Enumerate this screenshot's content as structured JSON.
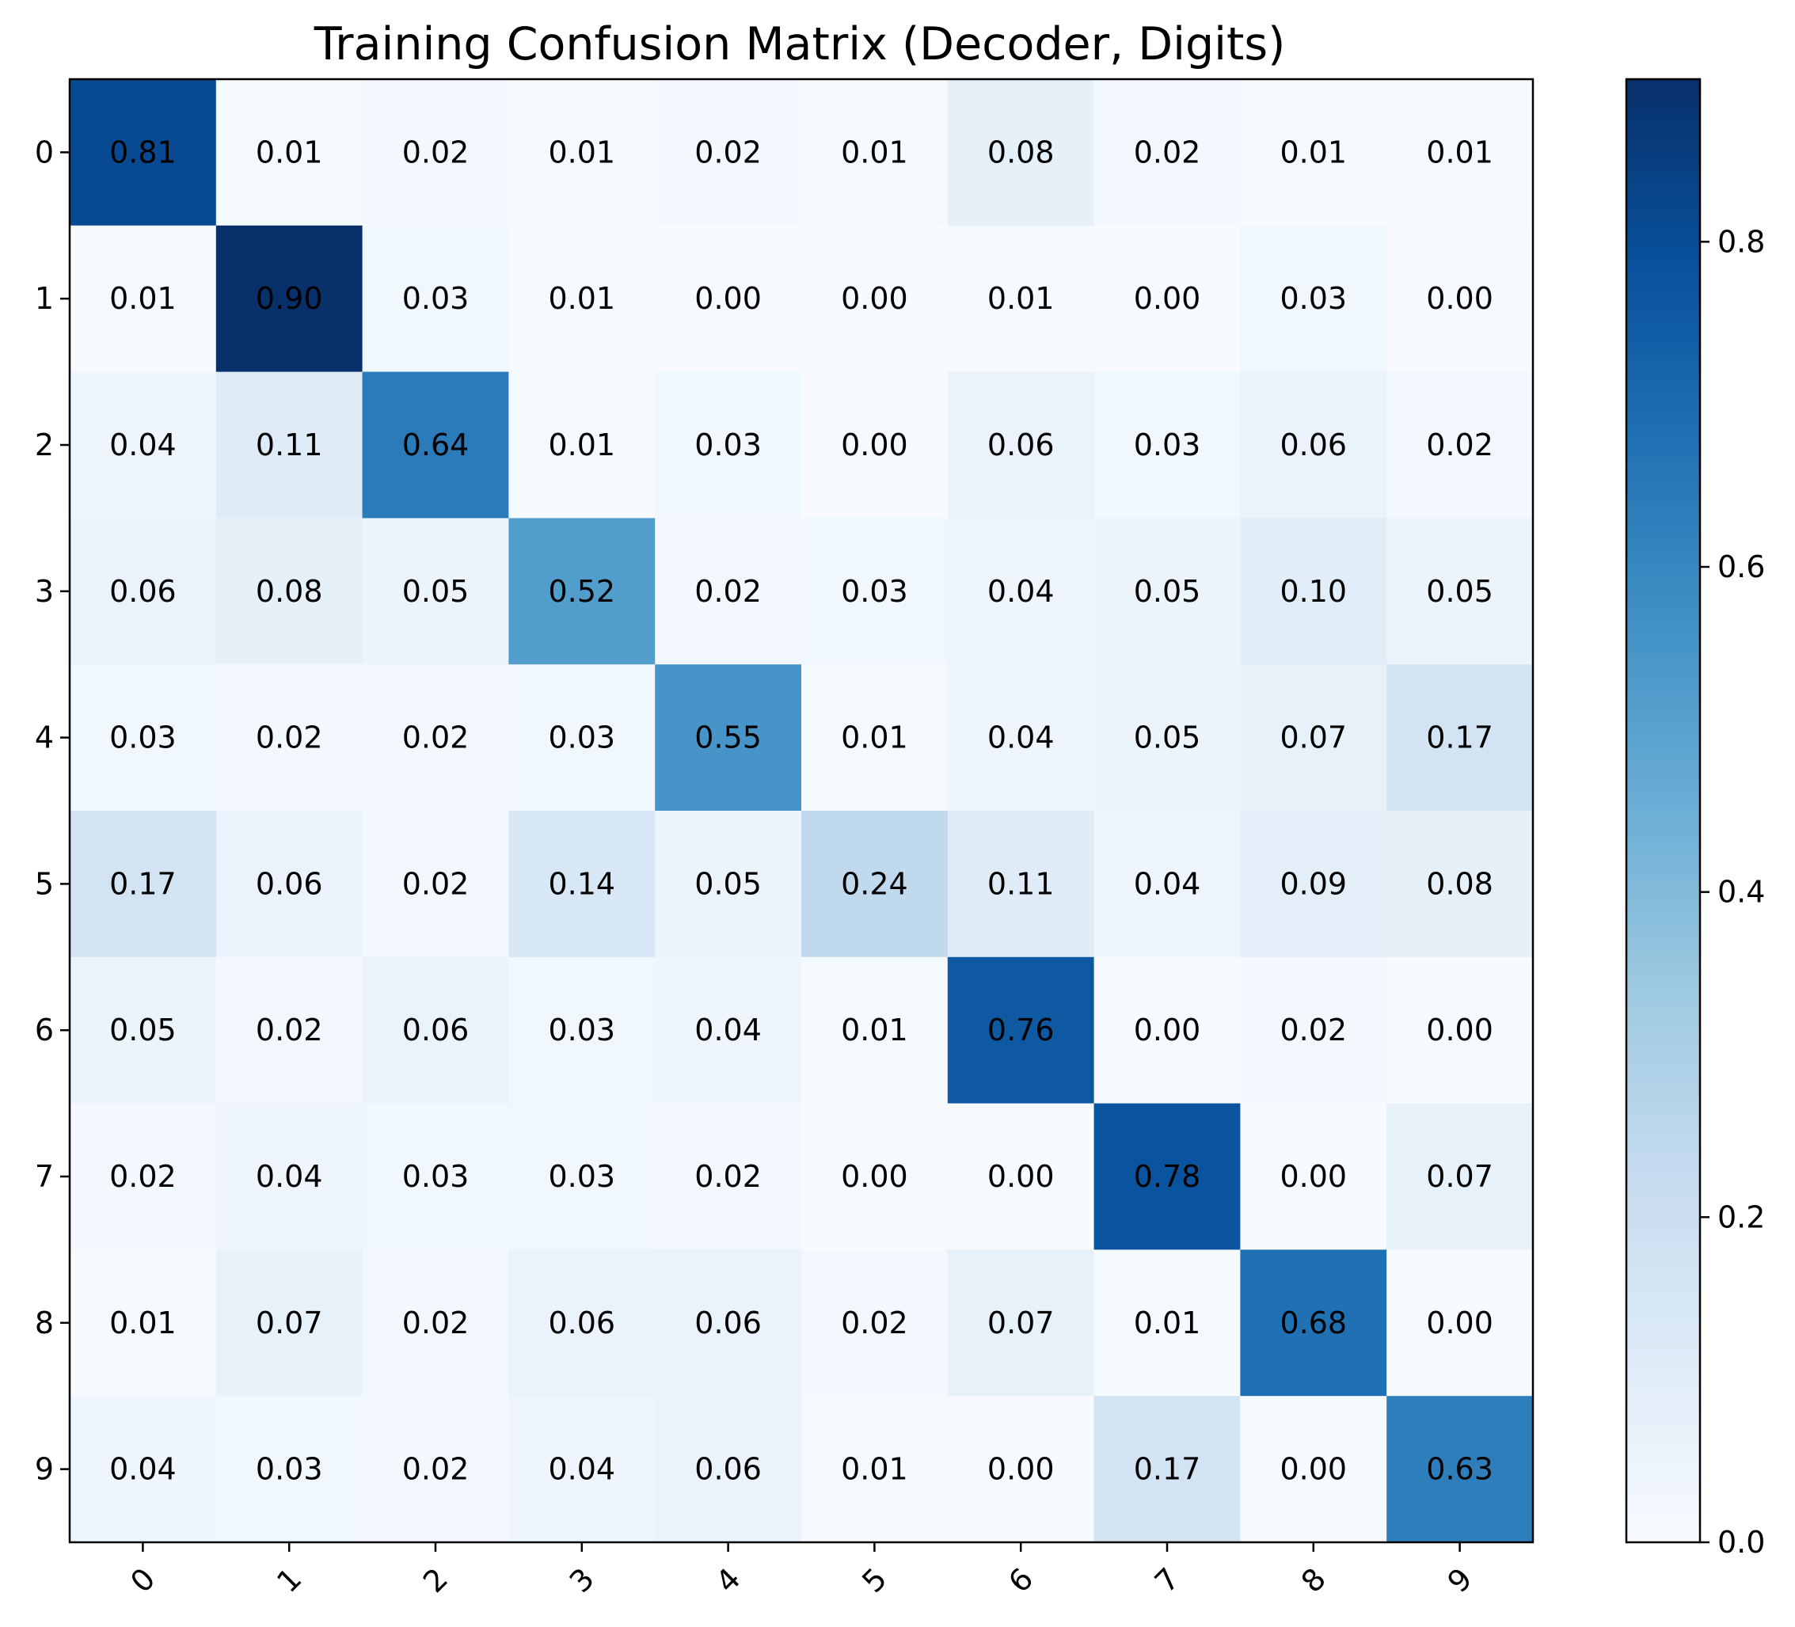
{
  "chart_data": {
    "type": "heatmap",
    "title": "Training Confusion Matrix (Decoder, Digits)",
    "xlabel": "",
    "ylabel": "",
    "x_categories": [
      "0",
      "1",
      "2",
      "3",
      "4",
      "5",
      "6",
      "7",
      "8",
      "9"
    ],
    "y_categories": [
      "0",
      "1",
      "2",
      "3",
      "4",
      "5",
      "6",
      "7",
      "8",
      "9"
    ],
    "values": [
      [
        0.81,
        0.01,
        0.02,
        0.01,
        0.02,
        0.01,
        0.08,
        0.02,
        0.01,
        0.01
      ],
      [
        0.01,
        0.9,
        0.03,
        0.01,
        0.0,
        0.0,
        0.01,
        0.0,
        0.03,
        0.0
      ],
      [
        0.04,
        0.11,
        0.64,
        0.01,
        0.03,
        0.0,
        0.06,
        0.03,
        0.06,
        0.02
      ],
      [
        0.06,
        0.08,
        0.05,
        0.52,
        0.02,
        0.03,
        0.04,
        0.05,
        0.1,
        0.05
      ],
      [
        0.03,
        0.02,
        0.02,
        0.03,
        0.55,
        0.01,
        0.04,
        0.05,
        0.07,
        0.17
      ],
      [
        0.17,
        0.06,
        0.02,
        0.14,
        0.05,
        0.24,
        0.11,
        0.04,
        0.09,
        0.08
      ],
      [
        0.05,
        0.02,
        0.06,
        0.03,
        0.04,
        0.01,
        0.76,
        0.0,
        0.02,
        0.0
      ],
      [
        0.02,
        0.04,
        0.03,
        0.03,
        0.02,
        0.0,
        0.0,
        0.78,
        0.0,
        0.07
      ],
      [
        0.01,
        0.07,
        0.02,
        0.06,
        0.06,
        0.02,
        0.07,
        0.01,
        0.68,
        0.0
      ],
      [
        0.04,
        0.03,
        0.02,
        0.04,
        0.06,
        0.01,
        0.0,
        0.17,
        0.0,
        0.63
      ]
    ],
    "value_format": "2 decimals",
    "colormap": "Blues",
    "colorbar": {
      "vmin": 0.0,
      "vmax": 0.9,
      "ticks": [
        0.0,
        0.2,
        0.4,
        0.6,
        0.8
      ],
      "tick_labels": [
        "0.0",
        "0.2",
        "0.4",
        "0.6",
        "0.8"
      ]
    },
    "x_tick_rotation_deg": 45,
    "grid": false,
    "legend": "colorbar right"
  }
}
